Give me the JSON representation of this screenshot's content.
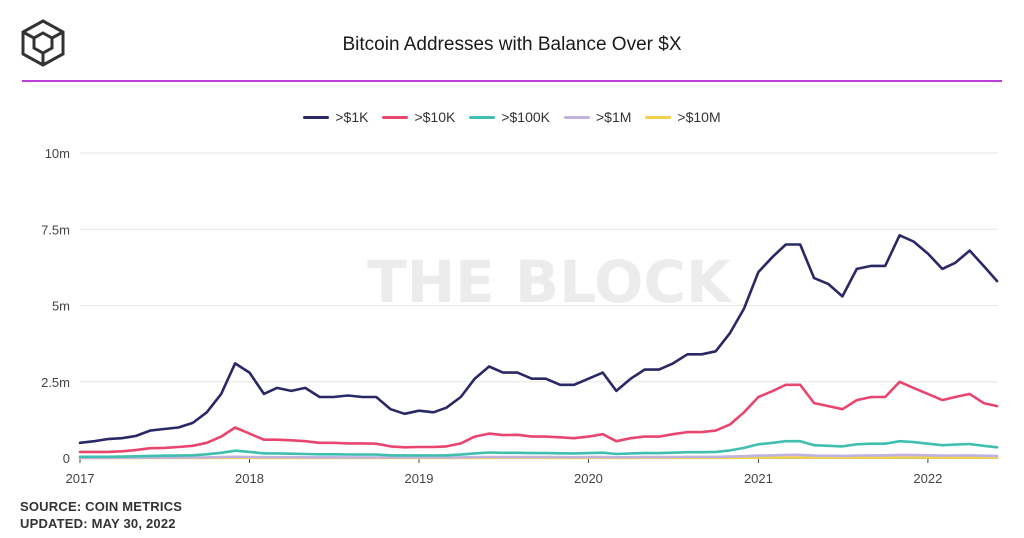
{
  "header": {
    "title": "Bitcoin Addresses with Balance Over $X",
    "logo_icon": "cube-logo-icon"
  },
  "footer": {
    "source": "SOURCE: COIN METRICS",
    "updated": "UPDATED: MAY 30, 2022"
  },
  "watermark": "THE BLOCK",
  "colors": {
    "accent_rule": "#b93fd6",
    "s1": "#2b2866",
    "s2": "#e8466f",
    "s3": "#40bfae",
    "s4": "#c0b3e0",
    "s5": "#f2d24a"
  },
  "chart_data": {
    "type": "line",
    "title": "Bitcoin Addresses with Balance Over $X",
    "xlabel": "",
    "ylabel": "",
    "ylim": [
      0,
      10000000
    ],
    "xlim": [
      "2017-01-01",
      "2022-06-01"
    ],
    "y_ticks": [
      {
        "value": 0,
        "label": "0"
      },
      {
        "value": 2500000,
        "label": "2.5m"
      },
      {
        "value": 5000000,
        "label": "5m"
      },
      {
        "value": 7500000,
        "label": "7.5m"
      },
      {
        "value": 10000000,
        "label": "10m"
      }
    ],
    "x_ticks": [
      {
        "value": "2017-01-01",
        "label": "2017"
      },
      {
        "value": "2018-01-01",
        "label": "2018"
      },
      {
        "value": "2019-01-01",
        "label": "2019"
      },
      {
        "value": "2020-01-01",
        "label": "2020"
      },
      {
        "value": "2021-01-01",
        "label": "2021"
      },
      {
        "value": "2022-01-01",
        "label": "2022"
      }
    ],
    "grid": true,
    "legend_position": "top-center",
    "dates": [
      "2017-01-01",
      "2017-02-01",
      "2017-03-01",
      "2017-04-01",
      "2017-05-01",
      "2017-06-01",
      "2017-07-01",
      "2017-08-01",
      "2017-09-01",
      "2017-10-01",
      "2017-11-01",
      "2017-12-01",
      "2018-01-01",
      "2018-02-01",
      "2018-03-01",
      "2018-04-01",
      "2018-05-01",
      "2018-06-01",
      "2018-07-01",
      "2018-08-01",
      "2018-09-01",
      "2018-10-01",
      "2018-11-01",
      "2018-12-01",
      "2019-01-01",
      "2019-02-01",
      "2019-03-01",
      "2019-04-01",
      "2019-05-01",
      "2019-06-01",
      "2019-07-01",
      "2019-08-01",
      "2019-09-01",
      "2019-10-01",
      "2019-11-01",
      "2019-12-01",
      "2020-01-01",
      "2020-02-01",
      "2020-03-01",
      "2020-04-01",
      "2020-05-01",
      "2020-06-01",
      "2020-07-01",
      "2020-08-01",
      "2020-09-01",
      "2020-10-01",
      "2020-11-01",
      "2020-12-01",
      "2021-01-01",
      "2021-02-01",
      "2021-03-01",
      "2021-04-01",
      "2021-05-01",
      "2021-06-01",
      "2021-07-01",
      "2021-08-01",
      "2021-09-01",
      "2021-10-01",
      "2021-11-01",
      "2021-12-01",
      "2022-01-01",
      "2022-02-01",
      "2022-03-01",
      "2022-04-01",
      "2022-05-01",
      "2022-05-30"
    ],
    "series": [
      {
        "name": ">$1K",
        "color": "#2b2866",
        "values": [
          500000,
          550000,
          620000,
          650000,
          720000,
          900000,
          950000,
          1000000,
          1150000,
          1500000,
          2100000,
          3100000,
          2800000,
          2100000,
          2300000,
          2200000,
          2300000,
          2000000,
          2000000,
          2050000,
          2000000,
          2000000,
          1600000,
          1450000,
          1550000,
          1500000,
          1650000,
          2000000,
          2600000,
          3000000,
          2800000,
          2800000,
          2600000,
          2600000,
          2400000,
          2400000,
          2600000,
          2800000,
          2200000,
          2600000,
          2900000,
          2900000,
          3100000,
          3400000,
          3400000,
          3500000,
          4100000,
          4900000,
          6100000,
          6600000,
          7000000,
          7000000,
          5900000,
          5700000,
          5300000,
          6200000,
          6300000,
          6300000,
          7300000,
          7100000,
          6700000,
          6200000,
          6400000,
          6800000,
          6300000,
          5800000
        ]
      },
      {
        "name": ">$10K",
        "color": "#e8466f",
        "values": [
          200000,
          200000,
          200000,
          220000,
          260000,
          320000,
          330000,
          360000,
          400000,
          500000,
          700000,
          1000000,
          800000,
          600000,
          600000,
          580000,
          550000,
          500000,
          500000,
          480000,
          480000,
          470000,
          380000,
          350000,
          360000,
          360000,
          380000,
          480000,
          700000,
          800000,
          750000,
          760000,
          700000,
          700000,
          680000,
          650000,
          700000,
          780000,
          550000,
          650000,
          700000,
          700000,
          780000,
          850000,
          850000,
          900000,
          1100000,
          1500000,
          2000000,
          2200000,
          2400000,
          2400000,
          1800000,
          1700000,
          1600000,
          1900000,
          2000000,
          2000000,
          2500000,
          2300000,
          2100000,
          1900000,
          2000000,
          2100000,
          1800000,
          1700000
        ]
      },
      {
        "name": ">$100K",
        "color": "#40bfae",
        "values": [
          40000,
          40000,
          40000,
          45000,
          55000,
          70000,
          75000,
          80000,
          90000,
          120000,
          170000,
          240000,
          200000,
          150000,
          150000,
          140000,
          130000,
          120000,
          120000,
          115000,
          110000,
          110000,
          90000,
          85000,
          85000,
          85000,
          90000,
          110000,
          150000,
          180000,
          170000,
          170000,
          160000,
          160000,
          155000,
          150000,
          160000,
          175000,
          130000,
          150000,
          160000,
          160000,
          175000,
          190000,
          190000,
          200000,
          250000,
          330000,
          450000,
          500000,
          550000,
          550000,
          420000,
          400000,
          380000,
          450000,
          470000,
          470000,
          550000,
          520000,
          470000,
          420000,
          440000,
          460000,
          400000,
          350000
        ]
      },
      {
        "name": ">$1M",
        "color": "#c0b3e0",
        "values": [
          8000,
          8000,
          8000,
          9000,
          10000,
          12000,
          13000,
          14000,
          16000,
          21000,
          30000,
          40000,
          34000,
          27000,
          27000,
          25000,
          24000,
          22000,
          22000,
          21000,
          20000,
          20000,
          17000,
          16000,
          16000,
          16000,
          17000,
          21000,
          28000,
          33000,
          31000,
          31000,
          29000,
          29000,
          28000,
          27000,
          29000,
          31000,
          24000,
          27000,
          29000,
          29000,
          32000,
          35000,
          35000,
          37000,
          45000,
          60000,
          80000,
          90000,
          100000,
          100000,
          78000,
          74000,
          70000,
          82000,
          86000,
          86000,
          100000,
          95000,
          87000,
          78000,
          82000,
          85000,
          75000,
          68000
        ]
      },
      {
        "name": ">$10M",
        "color": "#f2d24a",
        "values": [
          1500,
          1500,
          1500,
          1700,
          1900,
          2200,
          2300,
          2500,
          2800,
          3500,
          5000,
          6500,
          5500,
          4500,
          4500,
          4300,
          4100,
          3800,
          3800,
          3700,
          3600,
          3600,
          3100,
          3000,
          3000,
          3000,
          3100,
          3700,
          4800,
          5500,
          5200,
          5200,
          5000,
          5000,
          4900,
          4800,
          5000,
          5300,
          4300,
          4800,
          5100,
          5100,
          5500,
          6000,
          6000,
          6300,
          7500,
          9500,
          12500,
          14000,
          15500,
          15500,
          12500,
          12000,
          11500,
          13000,
          13500,
          13500,
          15500,
          15000,
          14000,
          12800,
          13300,
          13700,
          12300,
          11500
        ]
      }
    ]
  }
}
